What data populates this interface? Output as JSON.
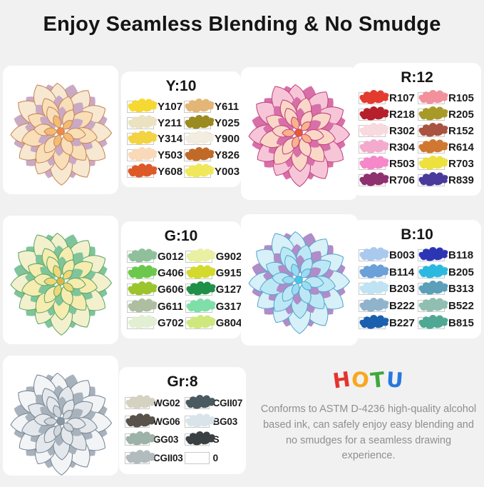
{
  "title": "Enjoy Seamless Blending & No Smudge",
  "colors": {
    "page_background": "#f1f1f2",
    "card_background": "#ffffff",
    "title_text": "#151515",
    "swatch_label_text": "#1b1b1b",
    "description_text": "#8f8f8f",
    "swatch_box_border": "#c9c9c9"
  },
  "sections": [
    {
      "label": "Y:10",
      "flower": {
        "outer": "#F7E8D2",
        "mid": "#F9DFB8",
        "inner": "#F3BC74",
        "edge": "#C8875A",
        "shadow": "#C9A9C4",
        "center": "#EE8A4A"
      },
      "swatches": [
        {
          "code": "Y107",
          "color": "#F6D832"
        },
        {
          "code": "Y211",
          "color": "#EBE2C2"
        },
        {
          "code": "Y314",
          "color": "#F4D342"
        },
        {
          "code": "Y503",
          "color": "#F9D9B8"
        },
        {
          "code": "Y608",
          "color": "#DD5A28"
        },
        {
          "code": "Y611",
          "color": "#E3B677"
        },
        {
          "code": "Y025",
          "color": "#9A8A20"
        },
        {
          "code": "Y900",
          "color": "#F2ECE1"
        },
        {
          "code": "Y826",
          "color": "#C06A28"
        },
        {
          "code": "Y003",
          "color": "#F0E85A"
        }
      ]
    },
    {
      "label": "R:12",
      "flower": {
        "outer": "#F6C6D8",
        "mid": "#FAD8C8",
        "inner": "#F8B488",
        "edge": "#C2447E",
        "shadow": "#D86FA8",
        "center": "#E85A30"
      },
      "swatches": [
        {
          "code": "R107",
          "color": "#E33B2E"
        },
        {
          "code": "R218",
          "color": "#B5202C"
        },
        {
          "code": "R302",
          "color": "#F7D9DE"
        },
        {
          "code": "R304",
          "color": "#F3AACD"
        },
        {
          "code": "R503",
          "color": "#F687C9"
        },
        {
          "code": "R706",
          "color": "#8F3070"
        },
        {
          "code": "R105",
          "color": "#F2909B"
        },
        {
          "code": "R205",
          "color": "#A89A28"
        },
        {
          "code": "R152",
          "color": "#A85441"
        },
        {
          "code": "R614",
          "color": "#D0782F"
        },
        {
          "code": "R703",
          "color": "#EDE13E"
        },
        {
          "code": "R839",
          "color": "#4A3A9C"
        }
      ]
    },
    {
      "label": "G:10",
      "flower": {
        "outer": "#F3F0CE",
        "mid": "#F6ECB0",
        "inner": "#EFD878",
        "edge": "#5FA864",
        "shadow": "#7FC49A",
        "center": "#D8B84C"
      },
      "swatches": [
        {
          "code": "G012",
          "color": "#8FC09B"
        },
        {
          "code": "G406",
          "color": "#6CC84C"
        },
        {
          "code": "G606",
          "color": "#9CC42C"
        },
        {
          "code": "G611",
          "color": "#AEBEA0"
        },
        {
          "code": "G702",
          "color": "#E3EFD3"
        },
        {
          "code": "G902",
          "color": "#E9F0A2"
        },
        {
          "code": "G915",
          "color": "#D4D92E"
        },
        {
          "code": "G127",
          "color": "#1F9048"
        },
        {
          "code": "G317",
          "color": "#7EDFA8"
        },
        {
          "code": "G804",
          "color": "#CFE87D"
        }
      ]
    },
    {
      "label": "B:10",
      "flower": {
        "outer": "#D8F0F8",
        "mid": "#BCE8F6",
        "inner": "#9ADCF2",
        "edge": "#58A8CC",
        "shadow": "#B08CC8",
        "center": "#48C4E8"
      },
      "swatches": [
        {
          "code": "B003",
          "color": "#A9C9EE"
        },
        {
          "code": "B114",
          "color": "#6BA0D8"
        },
        {
          "code": "B203",
          "color": "#BFE3F2"
        },
        {
          "code": "B222",
          "color": "#90B3CC"
        },
        {
          "code": "B227",
          "color": "#1B60AE"
        },
        {
          "code": "B118",
          "color": "#2C36B4"
        },
        {
          "code": "B205",
          "color": "#2CB9E0"
        },
        {
          "code": "B313",
          "color": "#5B9FB9"
        },
        {
          "code": "B522",
          "color": "#90BFB2"
        },
        {
          "code": "B815",
          "color": "#4FA894"
        }
      ]
    },
    {
      "label": "Gr:8",
      "flower": {
        "outer": "#F2F4F6",
        "mid": "#E4E8EC",
        "inner": "#D2D8DE",
        "edge": "#7A8894",
        "shadow": "#A8B2BC",
        "center": "#8A98A6"
      },
      "swatches": [
        {
          "code": "WG02",
          "color": "#D5D2C2"
        },
        {
          "code": "WG06",
          "color": "#57524A"
        },
        {
          "code": "GG03",
          "color": "#9DB2A8"
        },
        {
          "code": "CGII03",
          "color": "#B2BCBE"
        },
        {
          "code": "CGII07",
          "color": "#4A5A60"
        },
        {
          "code": "BG03",
          "color": "#D9E4EA"
        },
        {
          "code": "S",
          "color": "#3B4042"
        },
        {
          "code": "0",
          "color": null
        }
      ]
    }
  ],
  "brand": {
    "letters": [
      {
        "char": "H",
        "color": "#E5332C"
      },
      {
        "char": "O",
        "color": "#F7A81C"
      },
      {
        "char": "T",
        "color": "#3FA83A"
      },
      {
        "char": "U",
        "color": "#2878DE"
      }
    ],
    "description": "Conforms to ASTM D-4236 high-quality alcohol based ink, can safely enjoy easy blending and no smudges for a seamless drawing experience."
  }
}
